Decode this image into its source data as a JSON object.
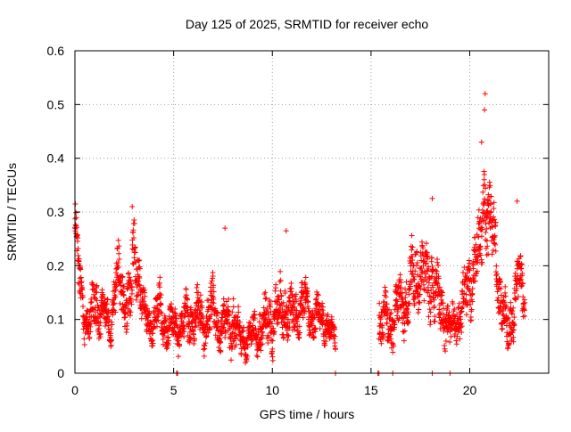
{
  "chart_data": {
    "type": "scatter",
    "title": "Day 125 of 2025, SRMTID for receiver echo",
    "xlabel": "GPS time / hours",
    "ylabel": "SRMTID / TECUs",
    "xlim": [
      0,
      24
    ],
    "ylim": [
      0,
      0.6
    ],
    "xticks": [
      0,
      5,
      10,
      15,
      20
    ],
    "xtick_labels": [
      "0",
      "5",
      "10",
      "15",
      "20"
    ],
    "yticks": [
      0,
      0.1,
      0.2,
      0.3,
      0.4,
      0.5,
      0.6
    ],
    "ytick_labels": [
      "0",
      "0.1",
      "0.2",
      "0.3",
      "0.4",
      "0.5",
      "0.6"
    ],
    "grid": true,
    "marker": "+",
    "color": "#ff0000",
    "series": [
      {
        "name": "SRMTID",
        "profile_hours": [
          0.0,
          0.05,
          0.15,
          0.3,
          0.5,
          0.8,
          1.0,
          1.2,
          1.5,
          1.8,
          2.0,
          2.2,
          2.5,
          2.8,
          3.0,
          3.2,
          3.5,
          3.8,
          4.0,
          4.3,
          4.6,
          5.0,
          5.3,
          5.6,
          6.0,
          6.3,
          6.6,
          7.0,
          7.3,
          7.6,
          8.0,
          8.3,
          8.6,
          9.0,
          9.3,
          9.6,
          10.0,
          10.3,
          10.6,
          11.0,
          11.3,
          11.6,
          12.0,
          12.3,
          12.6,
          12.9,
          13.2,
          15.4,
          15.6,
          16.0,
          16.4,
          16.8,
          17.2,
          17.5,
          17.8,
          18.1,
          18.4,
          18.7,
          19.0,
          19.3,
          19.6,
          19.9,
          20.2,
          20.5,
          20.7,
          20.9,
          21.1,
          21.3,
          21.6,
          21.9,
          22.2,
          22.5,
          22.8
        ],
        "profile_centers": [
          0.28,
          0.26,
          0.2,
          0.15,
          0.1,
          0.09,
          0.14,
          0.12,
          0.11,
          0.09,
          0.15,
          0.17,
          0.14,
          0.13,
          0.22,
          0.2,
          0.11,
          0.09,
          0.1,
          0.12,
          0.08,
          0.09,
          0.08,
          0.1,
          0.1,
          0.11,
          0.09,
          0.12,
          0.08,
          0.09,
          0.1,
          0.07,
          0.06,
          0.07,
          0.08,
          0.09,
          0.1,
          0.11,
          0.13,
          0.1,
          0.12,
          0.13,
          0.1,
          0.11,
          0.1,
          0.08,
          0.07,
          0.1,
          0.09,
          0.1,
          0.12,
          0.14,
          0.18,
          0.2,
          0.16,
          0.18,
          0.13,
          0.11,
          0.08,
          0.1,
          0.12,
          0.15,
          0.2,
          0.22,
          0.33,
          0.3,
          0.26,
          0.24,
          0.12,
          0.08,
          0.12,
          0.17,
          0.15
        ],
        "profile_spreads": [
          0.02,
          0.03,
          0.04,
          0.04,
          0.03,
          0.03,
          0.05,
          0.04,
          0.03,
          0.03,
          0.05,
          0.05,
          0.04,
          0.05,
          0.06,
          0.05,
          0.03,
          0.03,
          0.03,
          0.04,
          0.03,
          0.03,
          0.03,
          0.04,
          0.04,
          0.04,
          0.04,
          0.05,
          0.03,
          0.04,
          0.05,
          0.03,
          0.03,
          0.03,
          0.04,
          0.04,
          0.05,
          0.05,
          0.05,
          0.04,
          0.04,
          0.04,
          0.03,
          0.03,
          0.03,
          0.02,
          0.02,
          0.05,
          0.04,
          0.04,
          0.05,
          0.05,
          0.06,
          0.05,
          0.06,
          0.06,
          0.05,
          0.04,
          0.03,
          0.04,
          0.04,
          0.05,
          0.05,
          0.06,
          0.07,
          0.08,
          0.06,
          0.06,
          0.04,
          0.04,
          0.05,
          0.05,
          0.04
        ],
        "sample_step_hours": 0.0083,
        "gap_hours": [
          13.2,
          15.4
        ],
        "peaks": [
          {
            "x": 0.02,
            "y": 0.315
          },
          {
            "x": 2.9,
            "y": 0.31
          },
          {
            "x": 7.6,
            "y": 0.27
          },
          {
            "x": 10.7,
            "y": 0.265
          },
          {
            "x": 18.1,
            "y": 0.325
          },
          {
            "x": 20.6,
            "y": 0.43
          },
          {
            "x": 20.78,
            "y": 0.52
          },
          {
            "x": 20.75,
            "y": 0.49
          },
          {
            "x": 22.4,
            "y": 0.32
          }
        ],
        "zero_markers": [
          5.15,
          5.2,
          13.2,
          15.35,
          15.4,
          16.1,
          18.1,
          19.0
        ]
      }
    ]
  }
}
